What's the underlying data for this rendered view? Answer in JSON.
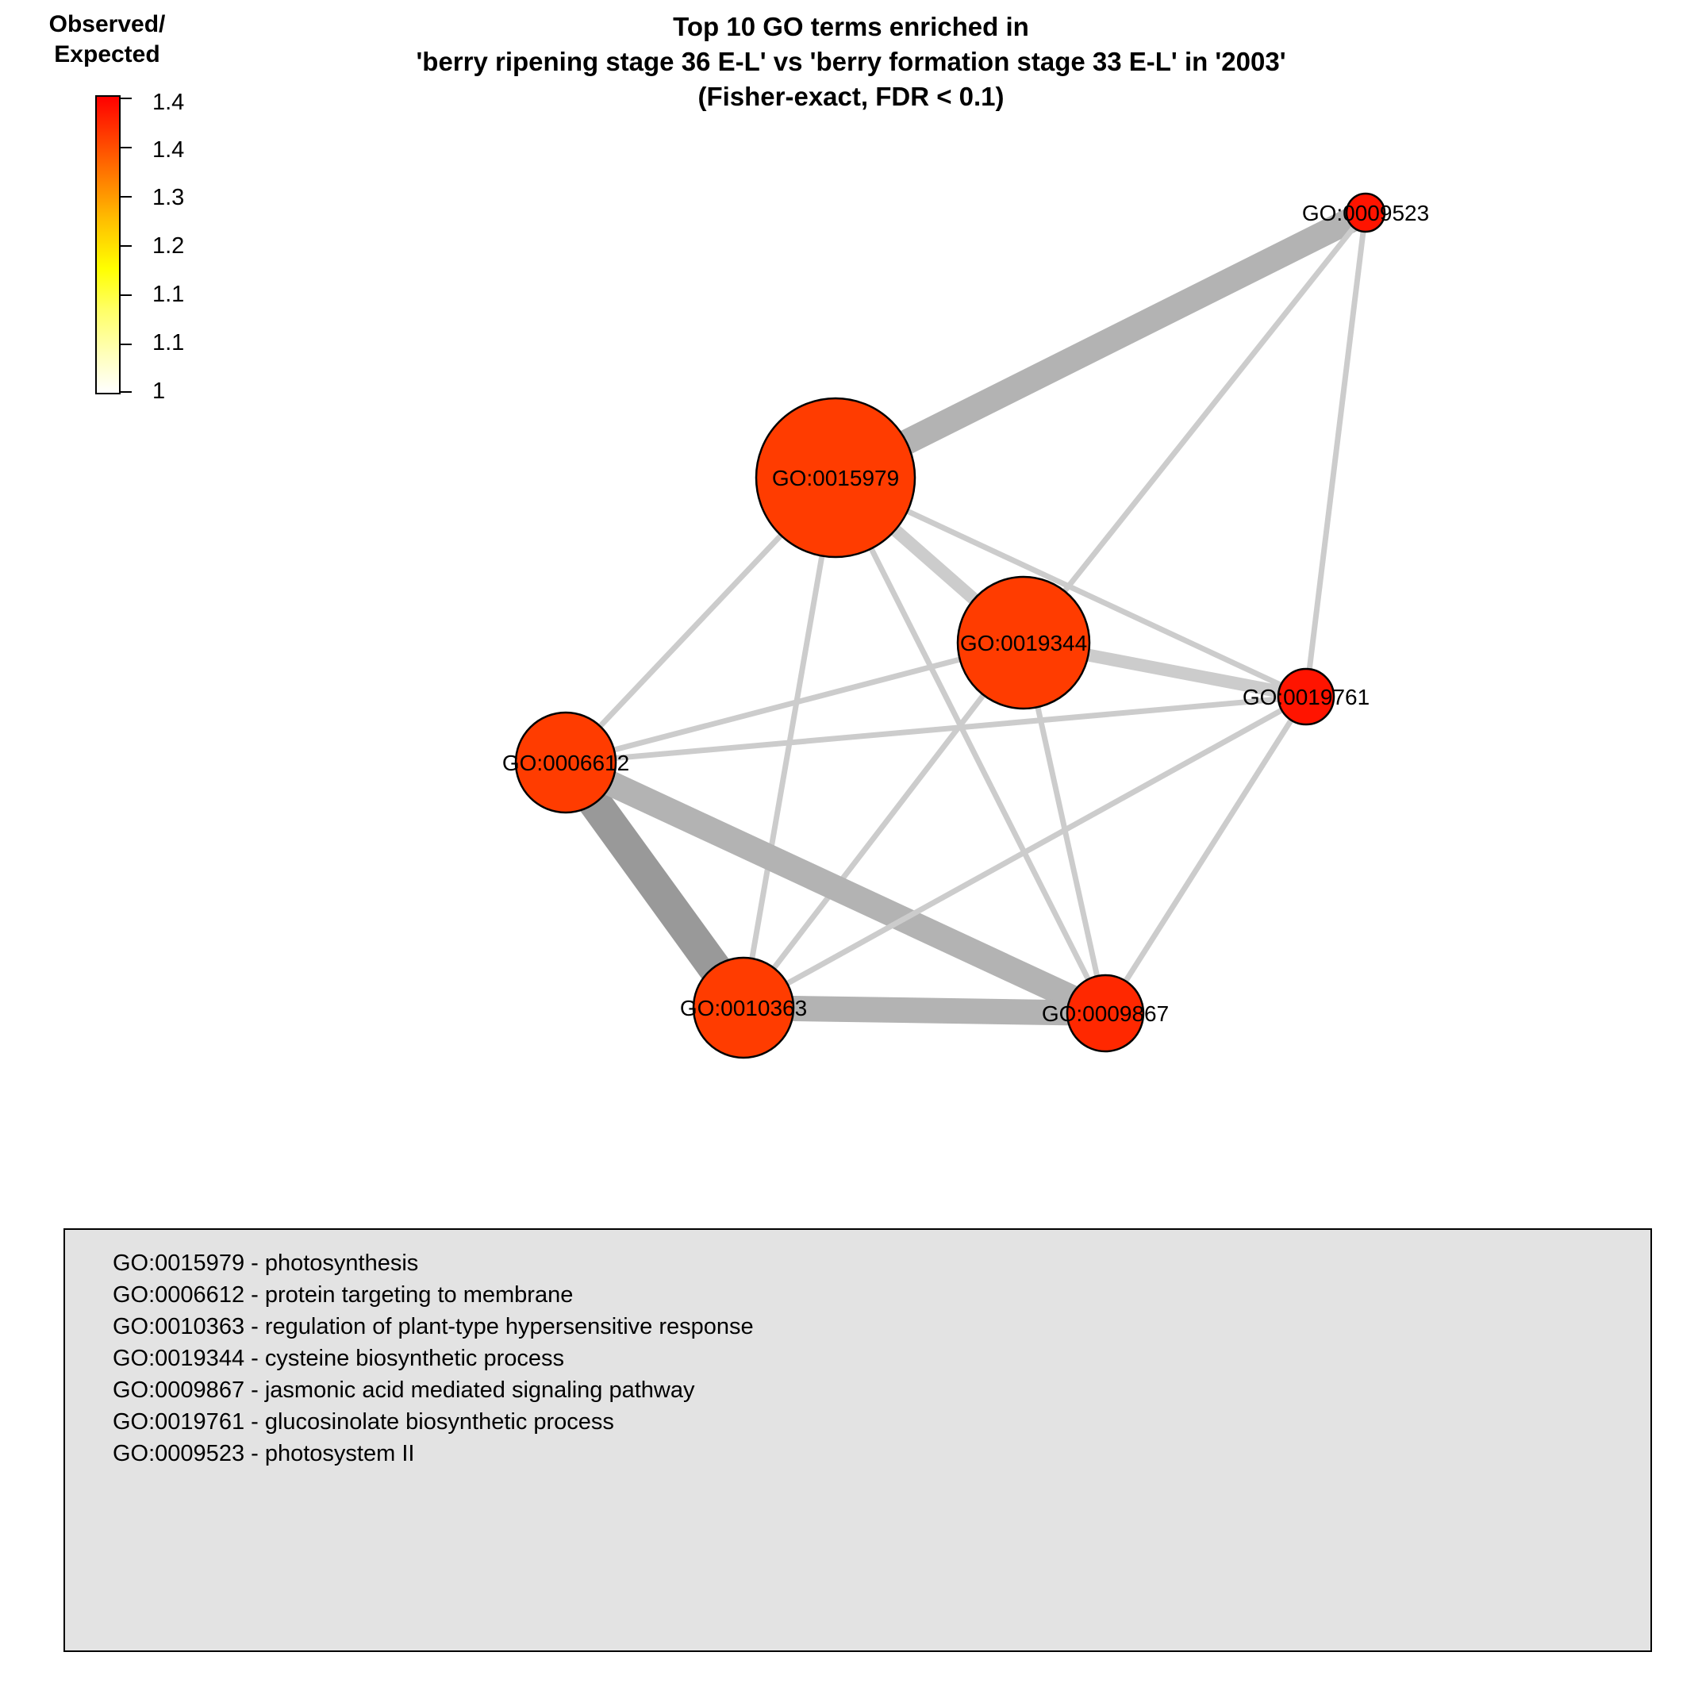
{
  "title": {
    "lines": [
      "Top 10 GO terms enriched in",
      "'berry ripening stage 36 E-L' vs 'berry formation stage 33 E-L' in '2003'",
      "(Fisher-exact, FDR < 0.1)"
    ]
  },
  "color_scale": {
    "title_lines": [
      "Observed/",
      "Expected"
    ],
    "tick_labels": [
      "1.4",
      "1.4",
      "1.3",
      "1.2",
      "1.1",
      "1.1",
      "1"
    ],
    "colors": {
      "low": "#ffffff",
      "high": "#ff0000",
      "node_fill": "#ff3c00",
      "node_fill_small": "#ff1a00",
      "edge_light": "#cccccc",
      "edge_mid": "#b3b3b3",
      "edge_dark": "#999999",
      "legend_bg": "#e3e3e3"
    }
  },
  "network": {
    "nodes": [
      {
        "id": "GO:0015979",
        "label": "GO:0015979",
        "color": "#ff3c00"
      },
      {
        "id": "GO:0019344",
        "label": "GO:0019344",
        "color": "#ff3c00"
      },
      {
        "id": "GO:0006612",
        "label": "GO:0006612",
        "color": "#ff3c00"
      },
      {
        "id": "GO:0010363",
        "label": "GO:0010363",
        "color": "#ff3c00"
      },
      {
        "id": "GO:0009867",
        "label": "GO:0009867",
        "color": "#ff2800"
      },
      {
        "id": "GO:0019761",
        "label": "GO:0019761",
        "color": "#ff1400"
      },
      {
        "id": "GO:0009523",
        "label": "GO:0009523",
        "color": "#ff1400"
      }
    ],
    "edges": [
      {
        "source": "GO:0015979",
        "target": "GO:0009523",
        "strength": "strong"
      },
      {
        "source": "GO:0015979",
        "target": "GO:0019344",
        "strength": "medium"
      },
      {
        "source": "GO:0015979",
        "target": "GO:0006612",
        "strength": "weak"
      },
      {
        "source": "GO:0015979",
        "target": "GO:0010363",
        "strength": "weak"
      },
      {
        "source": "GO:0015979",
        "target": "GO:0009867",
        "strength": "weak"
      },
      {
        "source": "GO:0015979",
        "target": "GO:0019761",
        "strength": "weak"
      },
      {
        "source": "GO:0019344",
        "target": "GO:0009523",
        "strength": "weak"
      },
      {
        "source": "GO:0019344",
        "target": "GO:0019761",
        "strength": "medium"
      },
      {
        "source": "GO:0019344",
        "target": "GO:0006612",
        "strength": "weak"
      },
      {
        "source": "GO:0019344",
        "target": "GO:0010363",
        "strength": "weak"
      },
      {
        "source": "GO:0019344",
        "target": "GO:0009867",
        "strength": "weak"
      },
      {
        "source": "GO:0009523",
        "target": "GO:0019761",
        "strength": "weak"
      },
      {
        "source": "GO:0006612",
        "target": "GO:0019761",
        "strength": "weak"
      },
      {
        "source": "GO:0006612",
        "target": "GO:0010363",
        "strength": "very-strong"
      },
      {
        "source": "GO:0006612",
        "target": "GO:0009867",
        "strength": "strong"
      },
      {
        "source": "GO:0010363",
        "target": "GO:0009867",
        "strength": "strong"
      },
      {
        "source": "GO:0010363",
        "target": "GO:0019761",
        "strength": "weak"
      },
      {
        "source": "GO:0009867",
        "target": "GO:0019761",
        "strength": "weak"
      }
    ]
  },
  "legend": {
    "entries": [
      "GO:0015979 - photosynthesis",
      "GO:0006612 - protein targeting to membrane",
      "GO:0010363 - regulation of plant-type hypersensitive response",
      "GO:0019344 - cysteine biosynthetic process",
      "GO:0009867 - jasmonic acid mediated signaling pathway",
      "GO:0019761 - glucosinolate biosynthetic process",
      "GO:0009523 - photosystem II"
    ]
  }
}
